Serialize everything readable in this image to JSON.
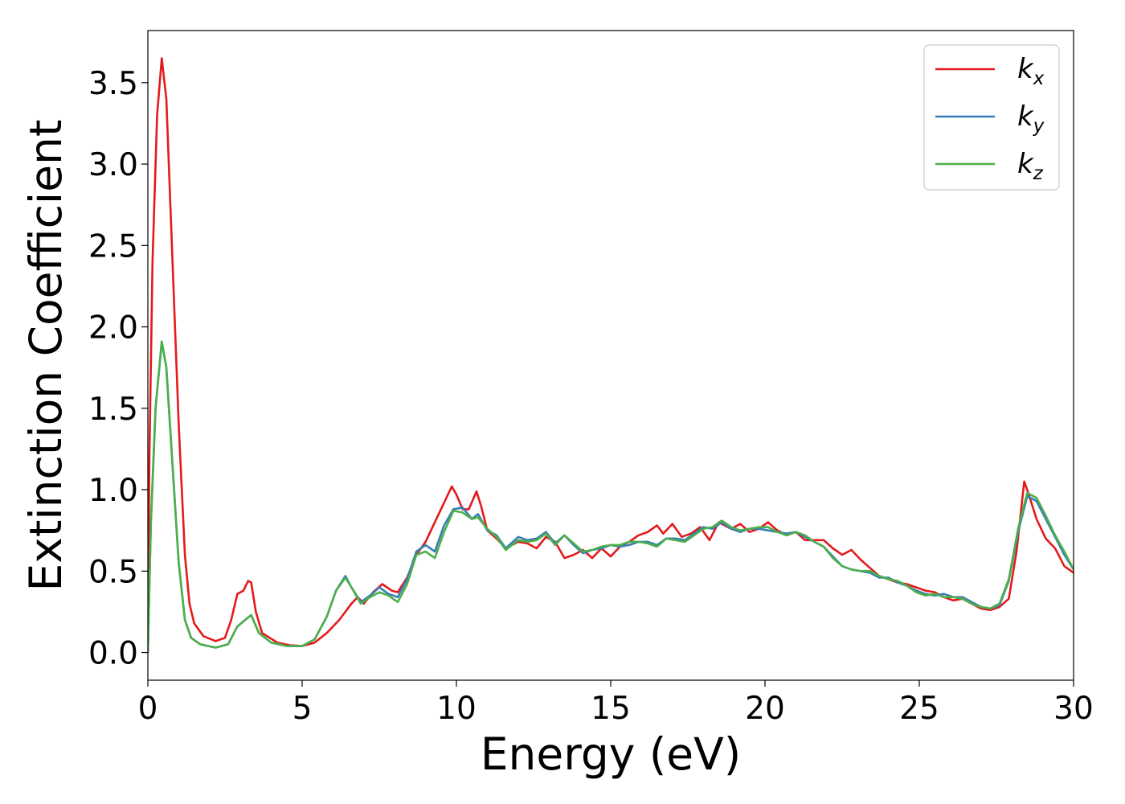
{
  "colors": {
    "kx": "#e41a1c",
    "ky": "#377eb8",
    "kz": "#4daf4a"
  },
  "chart_data": {
    "type": "line",
    "xlabel": "Energy (eV)",
    "ylabel": "Extinction Coefficient",
    "xlim": [
      0,
      30
    ],
    "ylim": [
      -0.17,
      3.82
    ],
    "xticks": [
      0,
      5,
      10,
      15,
      20,
      25,
      30
    ],
    "xtick_labels": [
      "0",
      "5",
      "10",
      "15",
      "20",
      "25",
      "30"
    ],
    "yticks": [
      0.0,
      0.5,
      1.0,
      1.5,
      2.0,
      2.5,
      3.0,
      3.5
    ],
    "ytick_labels": [
      "0.0",
      "0.5",
      "1.0",
      "1.5",
      "2.0",
      "2.5",
      "3.0",
      "3.5"
    ],
    "grid": false,
    "legend_position": "top-right",
    "series": [
      {
        "key": "kx",
        "name": "k",
        "subscript": "x",
        "color": "#e41a1c",
        "points": [
          [
            0,
            0.0
          ],
          [
            0.05,
            1.2
          ],
          [
            0.15,
            2.4
          ],
          [
            0.3,
            3.3
          ],
          [
            0.45,
            3.65
          ],
          [
            0.6,
            3.4
          ],
          [
            0.8,
            2.4
          ],
          [
            1.0,
            1.4
          ],
          [
            1.2,
            0.6
          ],
          [
            1.35,
            0.3
          ],
          [
            1.5,
            0.18
          ],
          [
            1.8,
            0.1
          ],
          [
            2.2,
            0.07
          ],
          [
            2.5,
            0.09
          ],
          [
            2.7,
            0.2
          ],
          [
            2.9,
            0.36
          ],
          [
            3.1,
            0.38
          ],
          [
            3.25,
            0.44
          ],
          [
            3.35,
            0.43
          ],
          [
            3.5,
            0.25
          ],
          [
            3.7,
            0.12
          ],
          [
            4.2,
            0.06
          ],
          [
            4.6,
            0.045
          ],
          [
            5.0,
            0.04
          ],
          [
            5.4,
            0.06
          ],
          [
            5.8,
            0.12
          ],
          [
            6.2,
            0.2
          ],
          [
            6.6,
            0.3
          ],
          [
            6.8,
            0.34
          ],
          [
            7.0,
            0.3
          ],
          [
            7.3,
            0.37
          ],
          [
            7.6,
            0.42
          ],
          [
            7.9,
            0.38
          ],
          [
            8.1,
            0.37
          ],
          [
            8.4,
            0.46
          ],
          [
            8.7,
            0.6
          ],
          [
            9.0,
            0.68
          ],
          [
            9.3,
            0.8
          ],
          [
            9.6,
            0.92
          ],
          [
            9.85,
            1.02
          ],
          [
            10.0,
            0.97
          ],
          [
            10.2,
            0.88
          ],
          [
            10.4,
            0.88
          ],
          [
            10.65,
            0.99
          ],
          [
            10.8,
            0.9
          ],
          [
            11.0,
            0.75
          ],
          [
            11.3,
            0.7
          ],
          [
            11.6,
            0.64
          ],
          [
            12.0,
            0.68
          ],
          [
            12.3,
            0.67
          ],
          [
            12.6,
            0.64
          ],
          [
            12.9,
            0.71
          ],
          [
            13.2,
            0.68
          ],
          [
            13.5,
            0.58
          ],
          [
            13.8,
            0.6
          ],
          [
            14.1,
            0.63
          ],
          [
            14.4,
            0.58
          ],
          [
            14.7,
            0.64
          ],
          [
            15.0,
            0.59
          ],
          [
            15.3,
            0.65
          ],
          [
            15.6,
            0.68
          ],
          [
            15.9,
            0.72
          ],
          [
            16.2,
            0.74
          ],
          [
            16.5,
            0.78
          ],
          [
            16.7,
            0.73
          ],
          [
            17.0,
            0.79
          ],
          [
            17.3,
            0.71
          ],
          [
            17.6,
            0.73
          ],
          [
            17.9,
            0.77
          ],
          [
            18.2,
            0.69
          ],
          [
            18.5,
            0.8
          ],
          [
            18.9,
            0.76
          ],
          [
            19.2,
            0.79
          ],
          [
            19.5,
            0.74
          ],
          [
            19.8,
            0.76
          ],
          [
            20.1,
            0.8
          ],
          [
            20.4,
            0.75
          ],
          [
            20.7,
            0.72
          ],
          [
            21.0,
            0.74
          ],
          [
            21.3,
            0.69
          ],
          [
            21.6,
            0.69
          ],
          [
            21.9,
            0.69
          ],
          [
            22.2,
            0.64
          ],
          [
            22.5,
            0.6
          ],
          [
            22.8,
            0.63
          ],
          [
            23.1,
            0.57
          ],
          [
            23.4,
            0.52
          ],
          [
            23.7,
            0.47
          ],
          [
            24.0,
            0.45
          ],
          [
            24.3,
            0.43
          ],
          [
            24.6,
            0.42
          ],
          [
            24.9,
            0.4
          ],
          [
            25.2,
            0.38
          ],
          [
            25.5,
            0.37
          ],
          [
            25.8,
            0.34
          ],
          [
            26.1,
            0.32
          ],
          [
            26.4,
            0.33
          ],
          [
            26.7,
            0.3
          ],
          [
            27.0,
            0.27
          ],
          [
            27.3,
            0.26
          ],
          [
            27.6,
            0.28
          ],
          [
            27.9,
            0.33
          ],
          [
            28.15,
            0.62
          ],
          [
            28.4,
            1.05
          ],
          [
            28.55,
            0.97
          ],
          [
            28.8,
            0.82
          ],
          [
            29.1,
            0.7
          ],
          [
            29.4,
            0.64
          ],
          [
            29.7,
            0.53
          ],
          [
            30.0,
            0.49
          ]
        ]
      },
      {
        "key": "ky",
        "name": "k",
        "subscript": "y",
        "color": "#377eb8",
        "points": [
          [
            0,
            0.0
          ],
          [
            0.1,
            0.8
          ],
          [
            0.25,
            1.5
          ],
          [
            0.45,
            1.91
          ],
          [
            0.6,
            1.75
          ],
          [
            0.8,
            1.15
          ],
          [
            1.0,
            0.55
          ],
          [
            1.2,
            0.2
          ],
          [
            1.4,
            0.09
          ],
          [
            1.7,
            0.05
          ],
          [
            2.2,
            0.03
          ],
          [
            2.6,
            0.05
          ],
          [
            2.9,
            0.16
          ],
          [
            3.15,
            0.2
          ],
          [
            3.35,
            0.23
          ],
          [
            3.6,
            0.12
          ],
          [
            4.0,
            0.06
          ],
          [
            4.5,
            0.04
          ],
          [
            5.0,
            0.04
          ],
          [
            5.4,
            0.08
          ],
          [
            5.8,
            0.22
          ],
          [
            6.1,
            0.38
          ],
          [
            6.4,
            0.47
          ],
          [
            6.6,
            0.4
          ],
          [
            6.9,
            0.31
          ],
          [
            7.2,
            0.35
          ],
          [
            7.5,
            0.4
          ],
          [
            7.8,
            0.36
          ],
          [
            8.1,
            0.34
          ],
          [
            8.4,
            0.45
          ],
          [
            8.7,
            0.62
          ],
          [
            9.0,
            0.66
          ],
          [
            9.3,
            0.62
          ],
          [
            9.6,
            0.78
          ],
          [
            9.9,
            0.88
          ],
          [
            10.2,
            0.89
          ],
          [
            10.5,
            0.82
          ],
          [
            10.7,
            0.85
          ],
          [
            11.0,
            0.75
          ],
          [
            11.3,
            0.72
          ],
          [
            11.6,
            0.64
          ],
          [
            12.0,
            0.71
          ],
          [
            12.3,
            0.69
          ],
          [
            12.6,
            0.7
          ],
          [
            12.9,
            0.74
          ],
          [
            13.2,
            0.67
          ],
          [
            13.5,
            0.72
          ],
          [
            13.8,
            0.66
          ],
          [
            14.1,
            0.61
          ],
          [
            14.4,
            0.63
          ],
          [
            14.7,
            0.64
          ],
          [
            15.0,
            0.66
          ],
          [
            15.3,
            0.65
          ],
          [
            15.6,
            0.66
          ],
          [
            15.9,
            0.68
          ],
          [
            16.2,
            0.68
          ],
          [
            16.5,
            0.66
          ],
          [
            16.8,
            0.7
          ],
          [
            17.1,
            0.7
          ],
          [
            17.4,
            0.69
          ],
          [
            17.7,
            0.73
          ],
          [
            18.0,
            0.77
          ],
          [
            18.3,
            0.76
          ],
          [
            18.6,
            0.8
          ],
          [
            18.9,
            0.76
          ],
          [
            19.2,
            0.74
          ],
          [
            19.5,
            0.76
          ],
          [
            19.8,
            0.76
          ],
          [
            20.1,
            0.75
          ],
          [
            20.4,
            0.74
          ],
          [
            20.7,
            0.73
          ],
          [
            21.0,
            0.74
          ],
          [
            21.3,
            0.71
          ],
          [
            21.6,
            0.68
          ],
          [
            21.9,
            0.65
          ],
          [
            22.2,
            0.59
          ],
          [
            22.5,
            0.53
          ],
          [
            22.8,
            0.51
          ],
          [
            23.1,
            0.5
          ],
          [
            23.4,
            0.49
          ],
          [
            23.7,
            0.46
          ],
          [
            24.0,
            0.46
          ],
          [
            24.3,
            0.43
          ],
          [
            24.6,
            0.41
          ],
          [
            24.9,
            0.38
          ],
          [
            25.2,
            0.36
          ],
          [
            25.5,
            0.35
          ],
          [
            25.8,
            0.36
          ],
          [
            26.1,
            0.34
          ],
          [
            26.4,
            0.34
          ],
          [
            26.7,
            0.31
          ],
          [
            27.0,
            0.28
          ],
          [
            27.3,
            0.27
          ],
          [
            27.6,
            0.29
          ],
          [
            27.9,
            0.44
          ],
          [
            28.2,
            0.74
          ],
          [
            28.5,
            0.96
          ],
          [
            28.8,
            0.93
          ],
          [
            29.1,
            0.82
          ],
          [
            29.4,
            0.71
          ],
          [
            29.7,
            0.6
          ],
          [
            30.0,
            0.51
          ]
        ]
      },
      {
        "key": "kz",
        "name": "k",
        "subscript": "z",
        "color": "#4daf4a",
        "points": [
          [
            0,
            0.0
          ],
          [
            0.1,
            0.8
          ],
          [
            0.25,
            1.5
          ],
          [
            0.45,
            1.91
          ],
          [
            0.6,
            1.75
          ],
          [
            0.8,
            1.15
          ],
          [
            1.0,
            0.55
          ],
          [
            1.2,
            0.2
          ],
          [
            1.4,
            0.09
          ],
          [
            1.7,
            0.05
          ],
          [
            2.2,
            0.03
          ],
          [
            2.6,
            0.05
          ],
          [
            2.9,
            0.16
          ],
          [
            3.15,
            0.2
          ],
          [
            3.35,
            0.23
          ],
          [
            3.6,
            0.12
          ],
          [
            4.0,
            0.06
          ],
          [
            4.5,
            0.04
          ],
          [
            5.0,
            0.04
          ],
          [
            5.4,
            0.08
          ],
          [
            5.8,
            0.22
          ],
          [
            6.1,
            0.38
          ],
          [
            6.4,
            0.46
          ],
          [
            6.6,
            0.4
          ],
          [
            6.9,
            0.3
          ],
          [
            7.2,
            0.34
          ],
          [
            7.5,
            0.37
          ],
          [
            7.8,
            0.35
          ],
          [
            8.1,
            0.31
          ],
          [
            8.4,
            0.42
          ],
          [
            8.7,
            0.6
          ],
          [
            9.0,
            0.62
          ],
          [
            9.3,
            0.58
          ],
          [
            9.6,
            0.74
          ],
          [
            9.9,
            0.87
          ],
          [
            10.2,
            0.86
          ],
          [
            10.5,
            0.82
          ],
          [
            10.7,
            0.83
          ],
          [
            11.0,
            0.76
          ],
          [
            11.3,
            0.71
          ],
          [
            11.6,
            0.63
          ],
          [
            12.0,
            0.69
          ],
          [
            12.3,
            0.68
          ],
          [
            12.6,
            0.69
          ],
          [
            12.9,
            0.73
          ],
          [
            13.2,
            0.66
          ],
          [
            13.5,
            0.72
          ],
          [
            13.8,
            0.67
          ],
          [
            14.1,
            0.62
          ],
          [
            14.4,
            0.63
          ],
          [
            14.7,
            0.65
          ],
          [
            15.0,
            0.66
          ],
          [
            15.3,
            0.66
          ],
          [
            15.6,
            0.68
          ],
          [
            15.9,
            0.68
          ],
          [
            16.2,
            0.67
          ],
          [
            16.5,
            0.65
          ],
          [
            16.8,
            0.7
          ],
          [
            17.1,
            0.69
          ],
          [
            17.4,
            0.68
          ],
          [
            17.7,
            0.72
          ],
          [
            18.0,
            0.76
          ],
          [
            18.3,
            0.77
          ],
          [
            18.6,
            0.81
          ],
          [
            18.9,
            0.77
          ],
          [
            19.2,
            0.75
          ],
          [
            19.5,
            0.76
          ],
          [
            19.8,
            0.77
          ],
          [
            20.1,
            0.77
          ],
          [
            20.4,
            0.74
          ],
          [
            20.7,
            0.72
          ],
          [
            21.0,
            0.74
          ],
          [
            21.3,
            0.72
          ],
          [
            21.6,
            0.68
          ],
          [
            21.9,
            0.65
          ],
          [
            22.2,
            0.58
          ],
          [
            22.5,
            0.53
          ],
          [
            22.8,
            0.51
          ],
          [
            23.1,
            0.5
          ],
          [
            23.4,
            0.5
          ],
          [
            23.7,
            0.47
          ],
          [
            24.0,
            0.45
          ],
          [
            24.3,
            0.44
          ],
          [
            24.6,
            0.41
          ],
          [
            24.9,
            0.37
          ],
          [
            25.2,
            0.35
          ],
          [
            25.5,
            0.36
          ],
          [
            25.8,
            0.34
          ],
          [
            26.1,
            0.34
          ],
          [
            26.4,
            0.33
          ],
          [
            26.7,
            0.3
          ],
          [
            27.0,
            0.28
          ],
          [
            27.3,
            0.27
          ],
          [
            27.6,
            0.3
          ],
          [
            27.9,
            0.45
          ],
          [
            28.2,
            0.76
          ],
          [
            28.5,
            0.98
          ],
          [
            28.8,
            0.95
          ],
          [
            29.1,
            0.84
          ],
          [
            29.4,
            0.72
          ],
          [
            29.7,
            0.62
          ],
          [
            30.0,
            0.51
          ]
        ]
      }
    ]
  }
}
